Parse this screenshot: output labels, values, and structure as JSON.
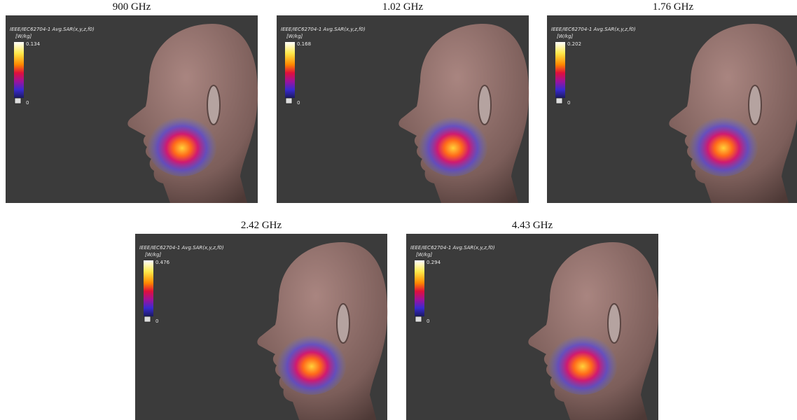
{
  "panels": [
    {
      "title": "900 GHz",
      "quantity": "IEEE/IEC62704-1 Avg.SAR(x,y,z,f0)",
      "unit": "[W/kg]",
      "max": 0.134,
      "min": 0
    },
    {
      "title": "1.02 GHz",
      "quantity": "IEEE/IEC62704-1 Avg.SAR(x,y,z,f0)",
      "unit": "[W/kg]",
      "max": 0.168,
      "min": 0
    },
    {
      "title": "1.76 GHz",
      "quantity": "IEEE/IEC62704-1 Avg.SAR(x,y,z,f0)",
      "unit": "[W/kg]",
      "max": 0.202,
      "min": 0
    },
    {
      "title": "2.42 GHz",
      "quantity": "IEEE/IEC62704-1 Avg.SAR(x,y,z,f0)",
      "unit": "[W/kg]",
      "max": 0.476,
      "min": 0
    },
    {
      "title": "4.43 GHz",
      "quantity": "IEEE/IEC62704-1 Avg.SAR(x,y,z,f0)",
      "unit": "[W/kg]",
      "max": 0.294,
      "min": 0
    }
  ]
}
